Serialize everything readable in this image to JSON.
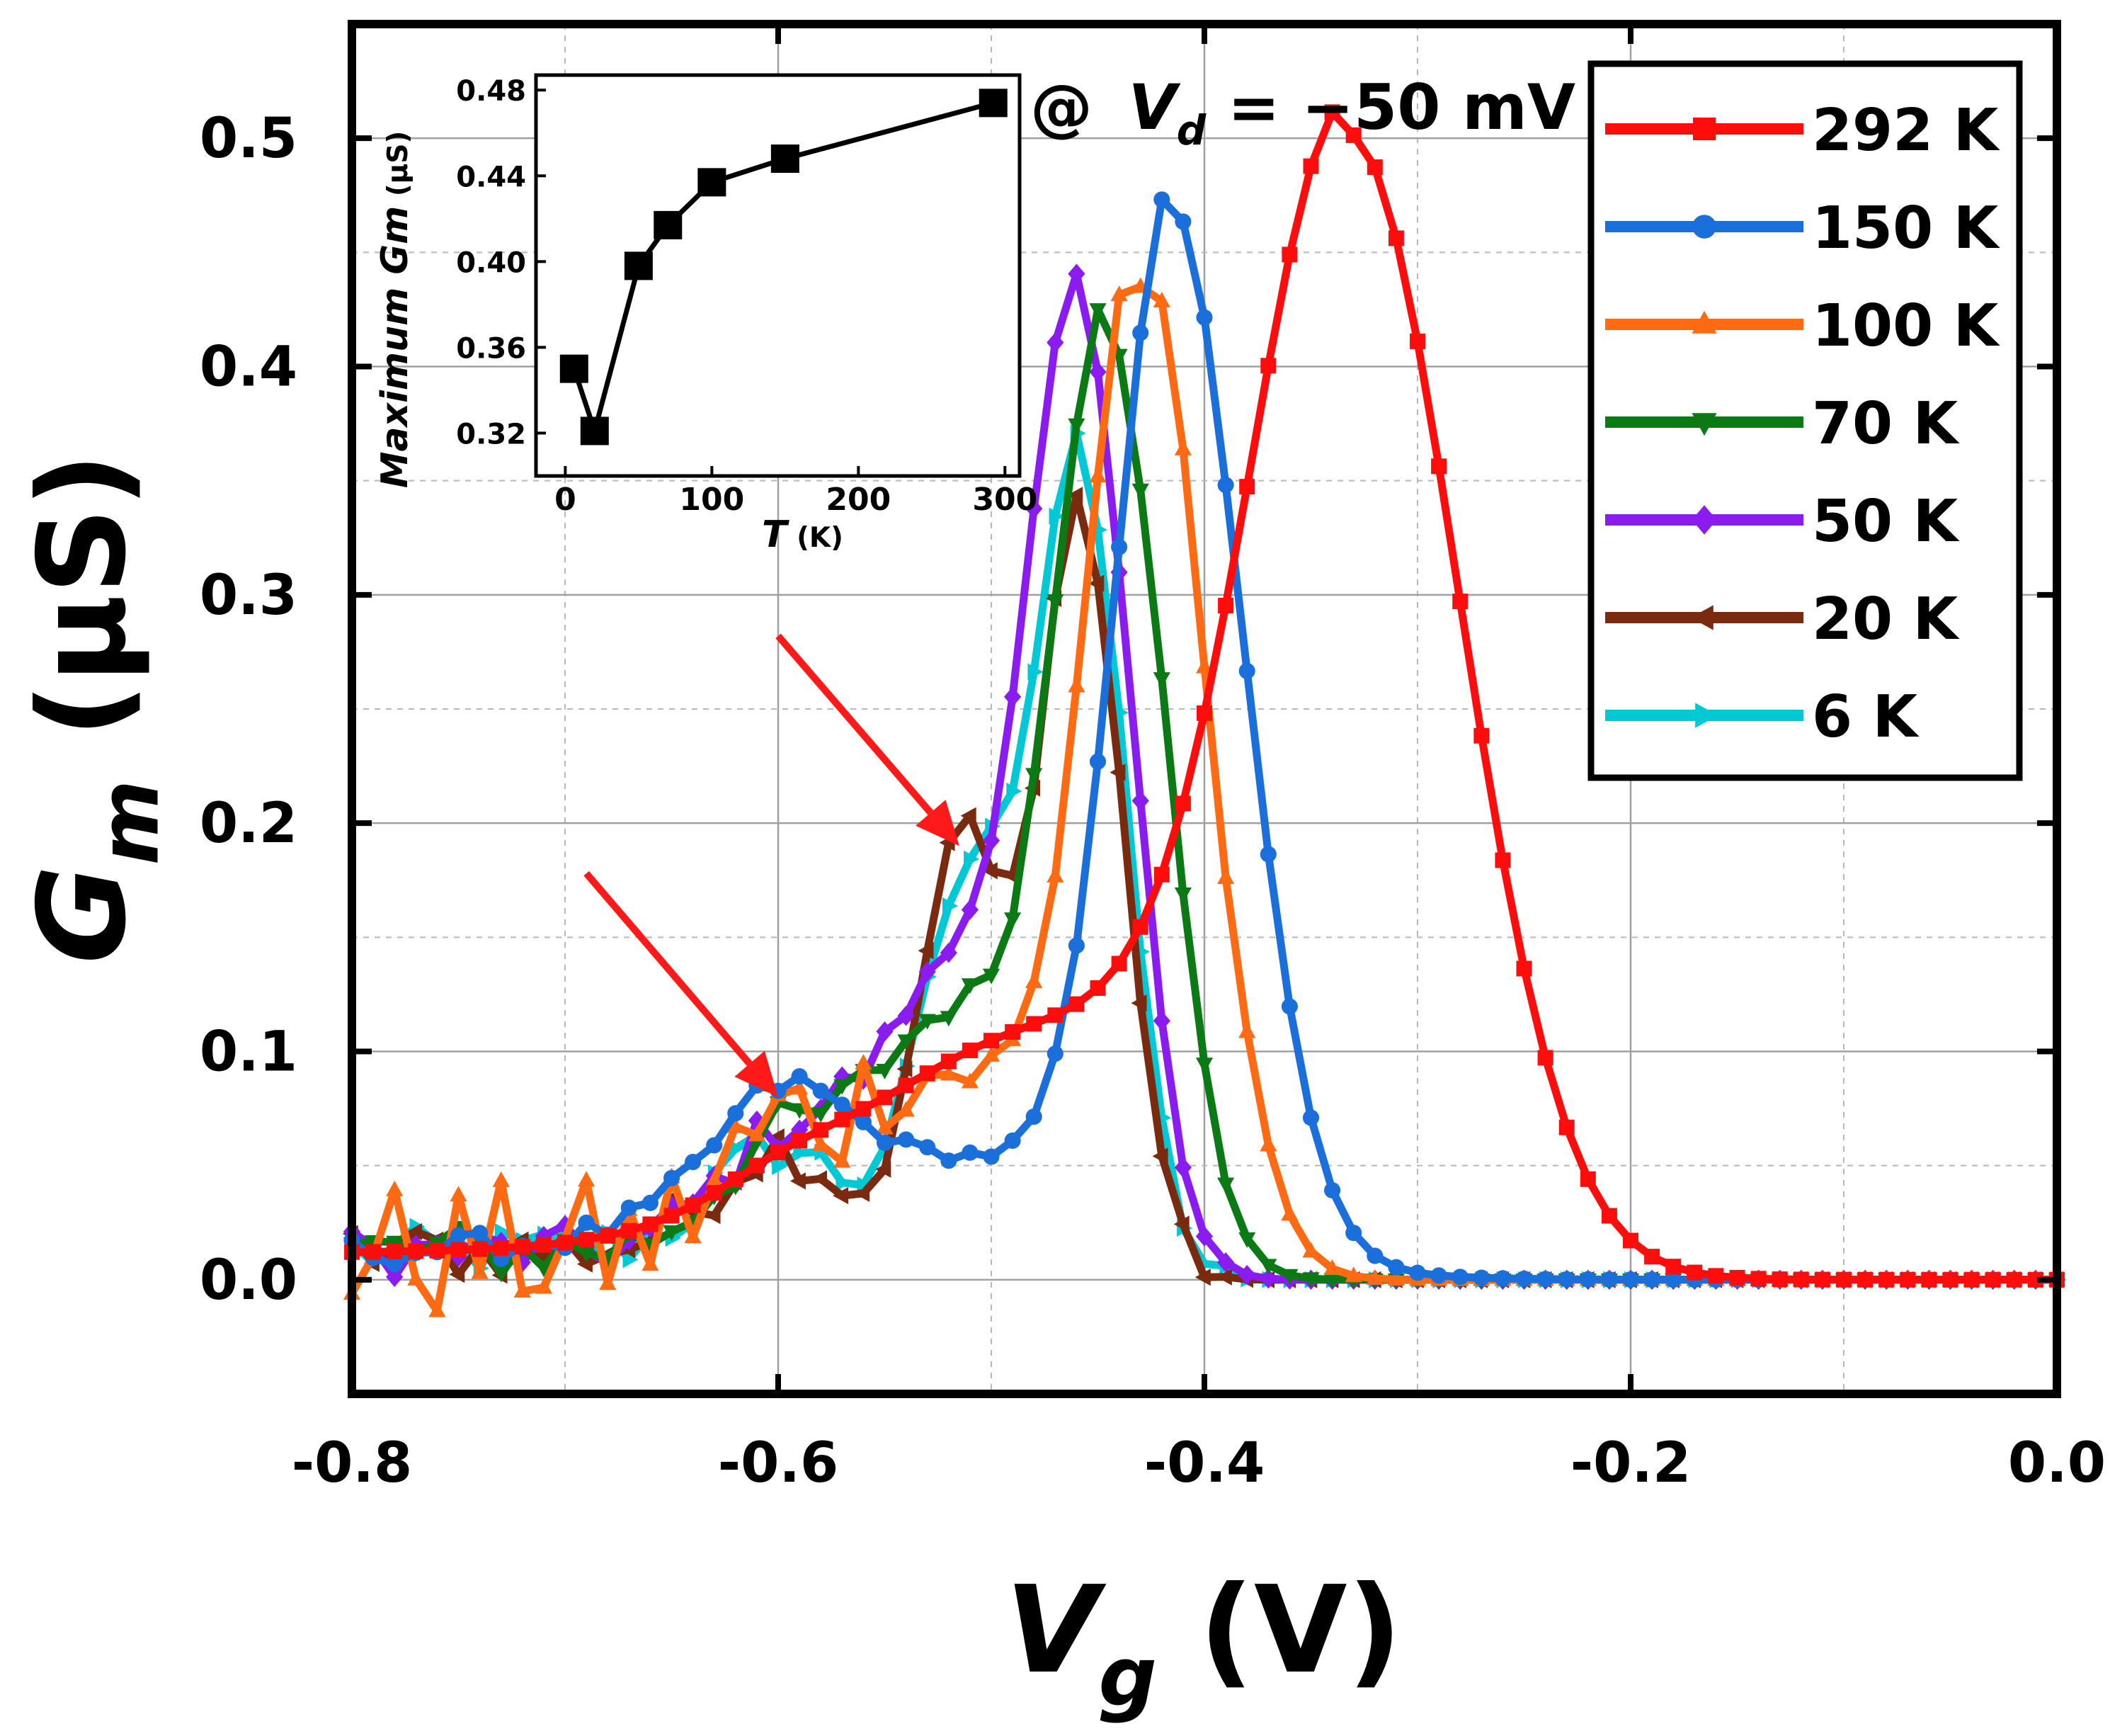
{
  "chart_data": [
    {
      "id": "main",
      "type": "line",
      "title": "",
      "annotation": {
        "prefix": "@ ",
        "var": "V",
        "sub": "d",
        "suffix": " = −50 mV"
      },
      "xlabel": {
        "var": "V",
        "sub": "g",
        "unit": " (V)"
      },
      "ylabel": {
        "var": "G",
        "sub": "m",
        "unit": " (μS)"
      },
      "xlim": [
        -0.8,
        0.0
      ],
      "ylim": [
        -0.05,
        0.55
      ],
      "xticks": [
        -0.8,
        -0.6,
        -0.4,
        -0.2,
        0.0
      ],
      "xtick_labels": [
        "-0.8",
        "-0.6",
        "-0.4",
        "-0.2",
        "0.0"
      ],
      "yticks": [
        0.0,
        0.1,
        0.2,
        0.3,
        0.4,
        0.5
      ],
      "ytick_labels": [
        "0.0",
        "0.1",
        "0.2",
        "0.3",
        "0.4",
        "0.5"
      ],
      "grid": true,
      "legend_position": "top-right",
      "arrows": [
        {
          "from": [
            -0.69,
            0.178
          ],
          "to": [
            -0.6,
            0.08
          ],
          "color": "#ff1a1a"
        },
        {
          "from": [
            -0.6,
            0.282
          ],
          "to": [
            -0.515,
            0.19
          ],
          "color": "#ff1a1a"
        }
      ],
      "series": [
        {
          "name": "292 K",
          "color": "#ff0d0d",
          "marker": "square",
          "peak": -0.33,
          "amp": 0.473,
          "w_left": 0.048,
          "w_right": 0.05,
          "base_amp": 0.095,
          "base_center": -0.47,
          "base_width": 0.09,
          "noise": 0.0,
          "x_min": -0.8,
          "x_max": 0.0,
          "step": 0.01
        },
        {
          "name": "150 K",
          "color": "#1a6fdb",
          "marker": "circle",
          "peak": -0.415,
          "amp": 0.447,
          "w_left": 0.026,
          "w_right": 0.033,
          "base_amp": 0.04,
          "base_center": -0.52,
          "base_width": 0.09,
          "noise": 0.004,
          "x_min": -0.8,
          "x_max": 0.0,
          "step": 0.01
        },
        {
          "name": "100 K",
          "color": "#ff6a13",
          "marker": "triangle-up",
          "peak": -0.43,
          "amp": 0.435,
          "w_left": 0.026,
          "w_right": 0.03,
          "base_amp": 0.075,
          "base_center": -0.52,
          "base_width": 0.04,
          "noise": 0.02,
          "x_min": -0.8,
          "x_max": 0.0,
          "step": 0.01
        },
        {
          "name": "70 K",
          "color": "#0c7a14",
          "marker": "triangle-down",
          "peak": -0.445,
          "amp": 0.41,
          "w_left": 0.025,
          "w_right": 0.026,
          "base_amp": 0.1,
          "base_center": -0.52,
          "base_width": 0.035,
          "noise": 0.008,
          "x_min": -0.8,
          "x_max": 0.0,
          "step": 0.01
        },
        {
          "name": "50 K",
          "color": "#8a1cf0",
          "marker": "diamond",
          "peak": -0.458,
          "amp": 0.398,
          "w_left": 0.024,
          "w_right": 0.024,
          "base_amp": 0.115,
          "base_center": -0.52,
          "base_width": 0.035,
          "noise": 0.007,
          "x_min": -0.8,
          "x_max": 0.0,
          "step": 0.01
        },
        {
          "name": "20 K",
          "color": "#7a2a0e",
          "marker": "triangle-left",
          "peak": -0.458,
          "amp": 0.33,
          "w_left": 0.02,
          "w_right": 0.02,
          "base_amp": 0.18,
          "base_center": -0.515,
          "base_width": 0.018,
          "noise": 0.008,
          "x_min": -0.8,
          "x_max": 0.0,
          "step": 0.01
        },
        {
          "name": "6 K",
          "color": "#00c8d4",
          "marker": "triangle-right",
          "peak": -0.458,
          "amp": 0.35,
          "w_left": 0.021,
          "w_right": 0.021,
          "base_amp": 0.155,
          "base_center": -0.512,
          "base_width": 0.022,
          "noise": 0.007,
          "x_min": -0.8,
          "x_max": 0.0,
          "step": 0.01
        }
      ]
    },
    {
      "id": "inset",
      "type": "line",
      "title": "",
      "xlabel": {
        "var": "T",
        "unit": " (K)"
      },
      "ylabel": {
        "var": "Maximum Gm",
        "unit": " (μS)"
      },
      "xlim": [
        -20,
        310
      ],
      "ylim": [
        0.3,
        0.487
      ],
      "xticks": [
        0,
        100,
        200,
        300
      ],
      "xtick_labels": [
        "0",
        "100",
        "200",
        "300"
      ],
      "yticks": [
        0.32,
        0.36,
        0.4,
        0.44,
        0.48
      ],
      "ytick_labels": [
        "0.32",
        "0.36",
        "0.40",
        "0.44",
        "0.48"
      ],
      "grid": false,
      "color": "#000000",
      "marker": "square",
      "x": [
        6,
        20,
        50,
        70,
        100,
        150,
        292
      ],
      "y": [
        0.35,
        0.321,
        0.398,
        0.417,
        0.437,
        0.448,
        0.474
      ]
    }
  ]
}
